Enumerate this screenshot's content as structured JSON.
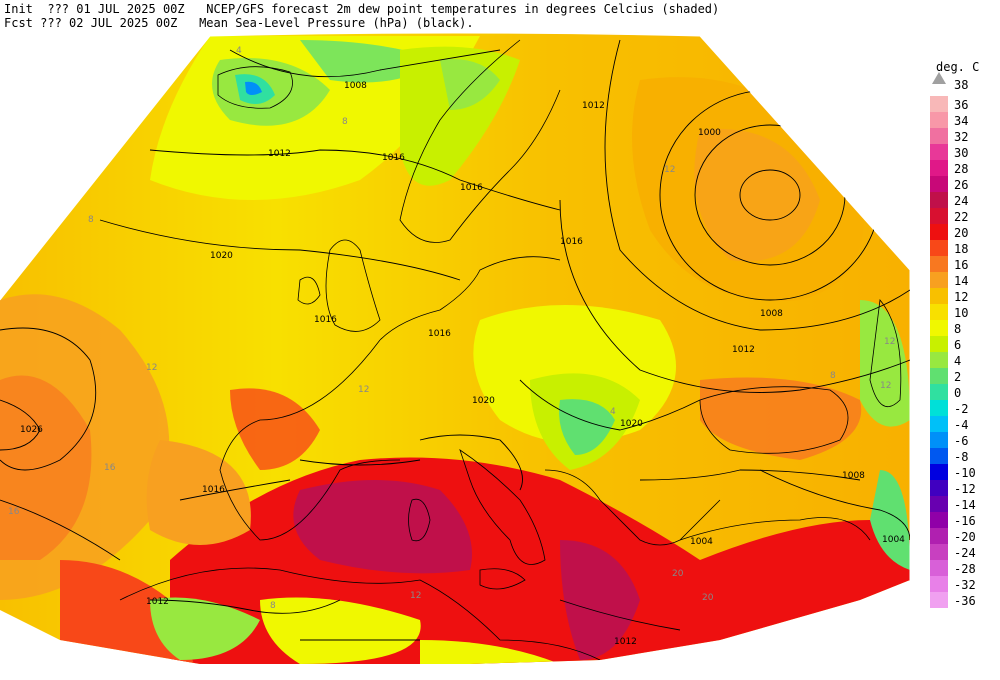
{
  "header": {
    "line1": "Init  ??? 01 JUL 2025 00Z   NCEP/GFS forecast 2m dew point temperatures in degrees Celcius (shaded)",
    "line2": "Fcst ??? 02 JUL 2025 00Z   Mean Sea-Level Pressure (hPa) (black)."
  },
  "legend": {
    "title": "deg. C",
    "top_label": "38",
    "entries": [
      {
        "label": "36",
        "color": "#f8b8b8"
      },
      {
        "label": "34",
        "color": "#f898a8"
      },
      {
        "label": "32",
        "color": "#f070a0"
      },
      {
        "label": "30",
        "color": "#e83898"
      },
      {
        "label": "28",
        "color": "#e01888"
      },
      {
        "label": "26",
        "color": "#c80878"
      },
      {
        "label": "24",
        "color": "#c0104a"
      },
      {
        "label": "22",
        "color": "#d81030"
      },
      {
        "label": "20",
        "color": "#ee1010"
      },
      {
        "label": "18",
        "color": "#f84818"
      },
      {
        "label": "16",
        "color": "#f87820"
      },
      {
        "label": "14",
        "color": "#f8a020"
      },
      {
        "label": "12",
        "color": "#f8c000"
      },
      {
        "label": "10",
        "color": "#f8e000"
      },
      {
        "label": "8",
        "color": "#f0f800"
      },
      {
        "label": "6",
        "color": "#c8f000"
      },
      {
        "label": "4",
        "color": "#98e840"
      },
      {
        "label": "2",
        "color": "#60e070"
      },
      {
        "label": "0",
        "color": "#30e0a0"
      },
      {
        "label": "-2",
        "color": "#00e0d8"
      },
      {
        "label": "-4",
        "color": "#00c0f8"
      },
      {
        "label": "-6",
        "color": "#0090f8"
      },
      {
        "label": "-8",
        "color": "#0058f0"
      },
      {
        "label": "-10",
        "color": "#0000e0"
      },
      {
        "label": "-12",
        "color": "#4000c0"
      },
      {
        "label": "-14",
        "color": "#6800b0"
      },
      {
        "label": "-16",
        "color": "#9000a8"
      },
      {
        "label": "-20",
        "color": "#b020b0"
      },
      {
        "label": "-24",
        "color": "#c840c0"
      },
      {
        "label": "-28",
        "color": "#d860d8"
      },
      {
        "label": "-32",
        "color": "#e880e8"
      },
      {
        "label": "-36",
        "color": "#f0a0f0"
      }
    ]
  },
  "map": {
    "isobar_labels": [
      "1008",
      "1012",
      "1016",
      "1020",
      "1026",
      "1000",
      "1004",
      "1012",
      "1016",
      "1020",
      "1016",
      "1012",
      "1008",
      "1016",
      "1020",
      "1016",
      "1012",
      "1016",
      "1008",
      "1004",
      "1012"
    ],
    "dewpoint_labels": [
      "4",
      "8",
      "8",
      "12",
      "12",
      "12",
      "16",
      "20",
      "20",
      "8",
      "12",
      "4",
      "16",
      "12",
      "8",
      "12"
    ]
  }
}
